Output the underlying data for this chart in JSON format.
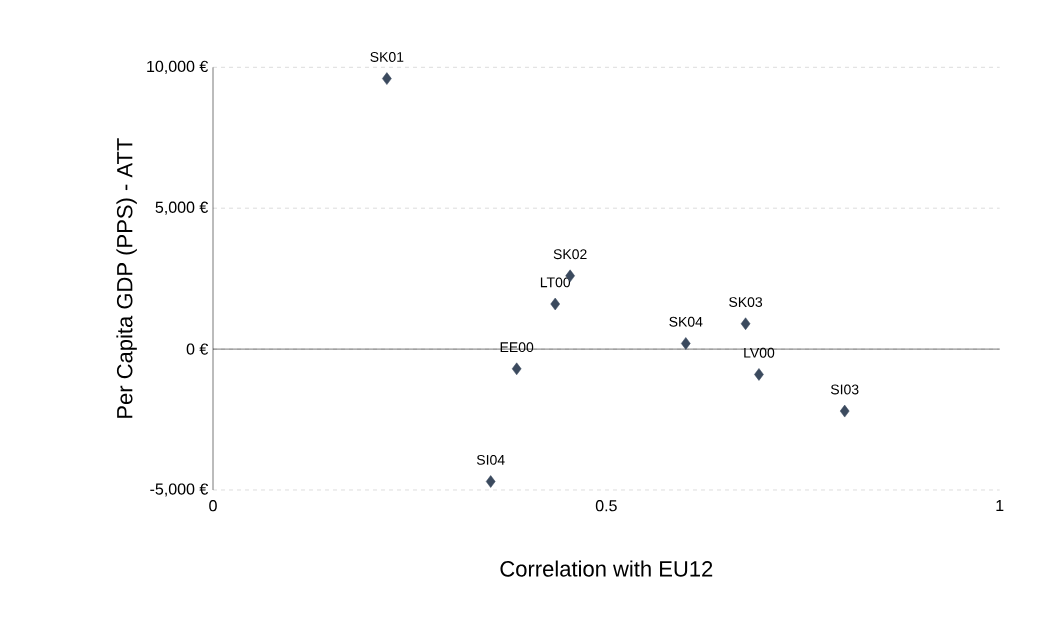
{
  "chart_data": {
    "type": "scatter",
    "xlabel": "Correlation with EU12",
    "ylabel": "Per Capita GDP (PPS) - ATT",
    "series": [
      {
        "color": "#3b4a5e",
        "x": [
          0.221,
          0.454,
          0.435,
          0.386,
          0.353,
          0.601,
          0.677,
          0.694,
          0.803
        ],
        "values": [
          9600,
          2600,
          1600,
          -700,
          -4700,
          200,
          900,
          -900,
          -2200
        ]
      }
    ],
    "annotations": [
      {
        "text": "SK01",
        "x": 0.221,
        "y": 9600
      },
      {
        "text": "SK02",
        "x": 0.454,
        "y": 2600
      },
      {
        "text": "LT00",
        "x": 0.435,
        "y": 1600
      },
      {
        "text": "EE00",
        "x": 0.386,
        "y": -700
      },
      {
        "text": "SI04",
        "x": 0.353,
        "y": -4700
      },
      {
        "text": "SK04",
        "x": 0.601,
        "y": 200
      },
      {
        "text": "SK03",
        "x": 0.677,
        "y": 900
      },
      {
        "text": "LV00",
        "x": 0.694,
        "y": -900
      },
      {
        "text": "SI03",
        "x": 0.803,
        "y": -2200
      }
    ],
    "xlim": [
      0,
      1
    ],
    "ylim": [
      -5000,
      10000
    ],
    "xticks": [
      0,
      0.5,
      1
    ],
    "yticks": [
      {
        "value": -5000,
        "label": "-5,000 €"
      },
      {
        "value": 0,
        "label": "0 €"
      },
      {
        "value": 5000,
        "label": "5,000 €"
      },
      {
        "value": 10000,
        "label": "10,000 €"
      }
    ],
    "grid": "y",
    "marker": "diamond"
  }
}
